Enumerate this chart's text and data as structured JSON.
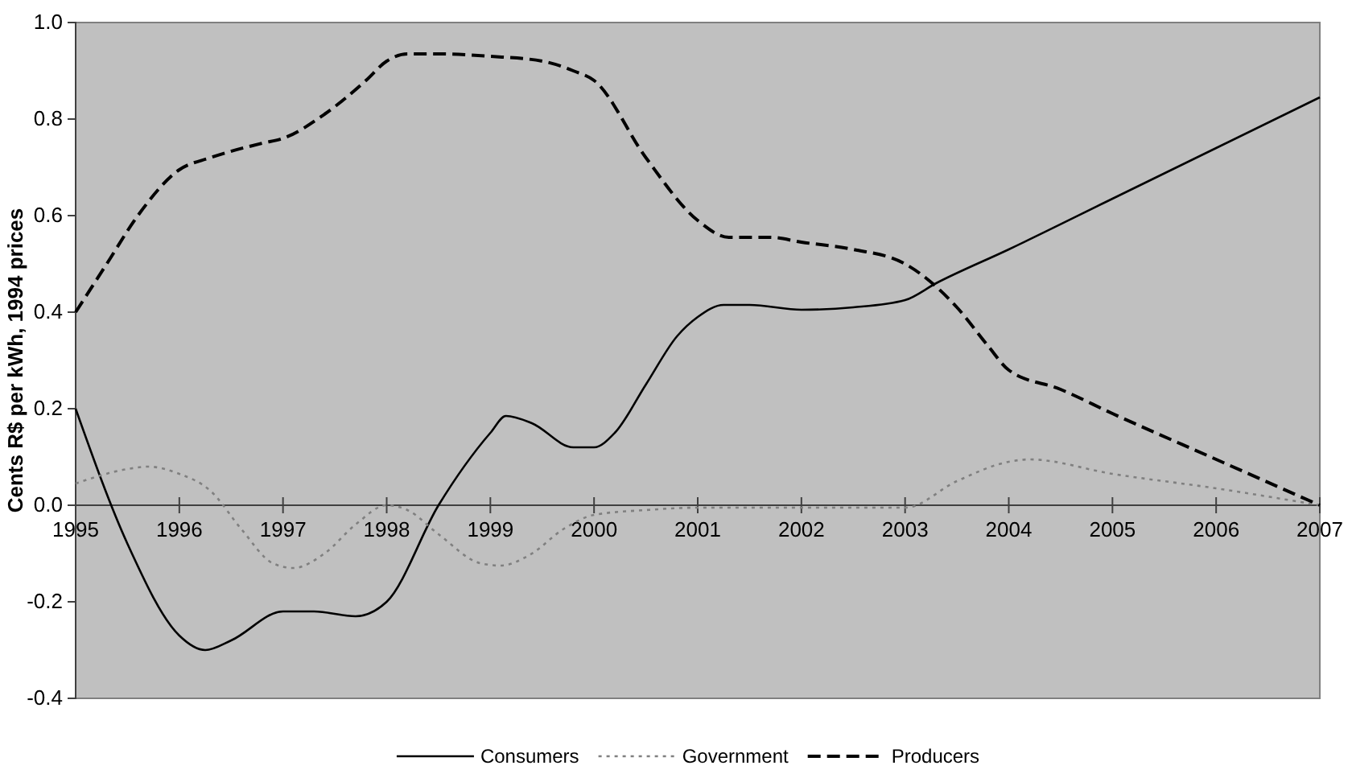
{
  "chart_data": {
    "type": "line",
    "ylabel": "Cents R$ per kWh, 1994 prices",
    "xlim": [
      1995,
      2007
    ],
    "xticks": [
      1995,
      1996,
      1997,
      1998,
      1999,
      2000,
      2001,
      2002,
      2003,
      2004,
      2005,
      2006,
      2007
    ],
    "ylim": [
      -0.4,
      1.0
    ],
    "yticks": [
      -0.4,
      -0.2,
      {
        "value": 0,
        "label": "0.0"
      },
      0.2,
      0.4,
      0.6,
      0.8,
      {
        "value": 1.0,
        "label": "1.0"
      }
    ],
    "legend": "bottom",
    "series": [
      {
        "name": "Consumers",
        "color": "#000000",
        "line_style": "solid",
        "x": [
          1995,
          1995.5,
          1996,
          1996.25,
          1996.5,
          1997,
          1997.3,
          1997.7,
          1998,
          1998.5,
          1999,
          1999.15,
          1999.4,
          1999.8,
          2000,
          2000.2,
          2000.5,
          2000.8,
          2001,
          2001.25,
          2001.5,
          2002,
          2002.5,
          2003,
          2003.3,
          2004,
          2005,
          2006,
          2007
        ],
        "values": [
          0.2,
          -0.08,
          -0.27,
          -0.3,
          -0.28,
          -0.22,
          -0.22,
          -0.23,
          -0.2,
          0.0,
          0.15,
          0.185,
          0.17,
          0.12,
          0.12,
          0.15,
          0.25,
          0.35,
          0.39,
          0.415,
          0.415,
          0.405,
          0.41,
          0.425,
          0.46,
          0.53,
          0.635,
          0.74,
          0.845
        ]
      },
      {
        "name": "Government",
        "color": "#808080",
        "line_style": "dotted",
        "x": [
          1995,
          1995.5,
          1995.7,
          1996,
          1996.3,
          1996.6,
          1996.9,
          1997.1,
          1997.4,
          1997.7,
          1998,
          1998.2,
          1998.5,
          1998.9,
          1999.1,
          1999.4,
          1999.7,
          2000,
          2000.5,
          2001,
          2002,
          2003,
          2003.5,
          2004,
          2004.2,
          2005,
          2006,
          2007
        ],
        "values": [
          0.045,
          0.075,
          0.08,
          0.065,
          0.03,
          -0.05,
          -0.12,
          -0.13,
          -0.1,
          -0.04,
          0.0,
          -0.01,
          -0.06,
          -0.12,
          -0.125,
          -0.1,
          -0.05,
          -0.02,
          -0.01,
          -0.005,
          -0.005,
          -0.005,
          0.05,
          0.09,
          0.095,
          0.065,
          0.035,
          0.0
        ]
      },
      {
        "name": "Producers",
        "color": "#000000",
        "line_style": "dashed",
        "x": [
          1995,
          1995.3,
          1995.6,
          1996,
          1996.3,
          1996.8,
          1997,
          1997.4,
          1997.8,
          1998,
          1998.2,
          1998.5,
          1999,
          1999.5,
          1999.8,
          2000,
          2000.5,
          2001,
          2001.3,
          2001.7,
          2002,
          2002.5,
          2003,
          2003.5,
          2003.8,
          2004,
          2004.5,
          2005,
          2006,
          2007
        ],
        "values": [
          0.4,
          0.5,
          0.6,
          0.695,
          0.72,
          0.75,
          0.76,
          0.81,
          0.88,
          0.92,
          0.935,
          0.935,
          0.93,
          0.92,
          0.9,
          0.88,
          0.72,
          0.59,
          0.555,
          0.555,
          0.545,
          0.53,
          0.5,
          0.41,
          0.33,
          0.28,
          0.24,
          0.19,
          0.095,
          0.0
        ]
      }
    ]
  }
}
